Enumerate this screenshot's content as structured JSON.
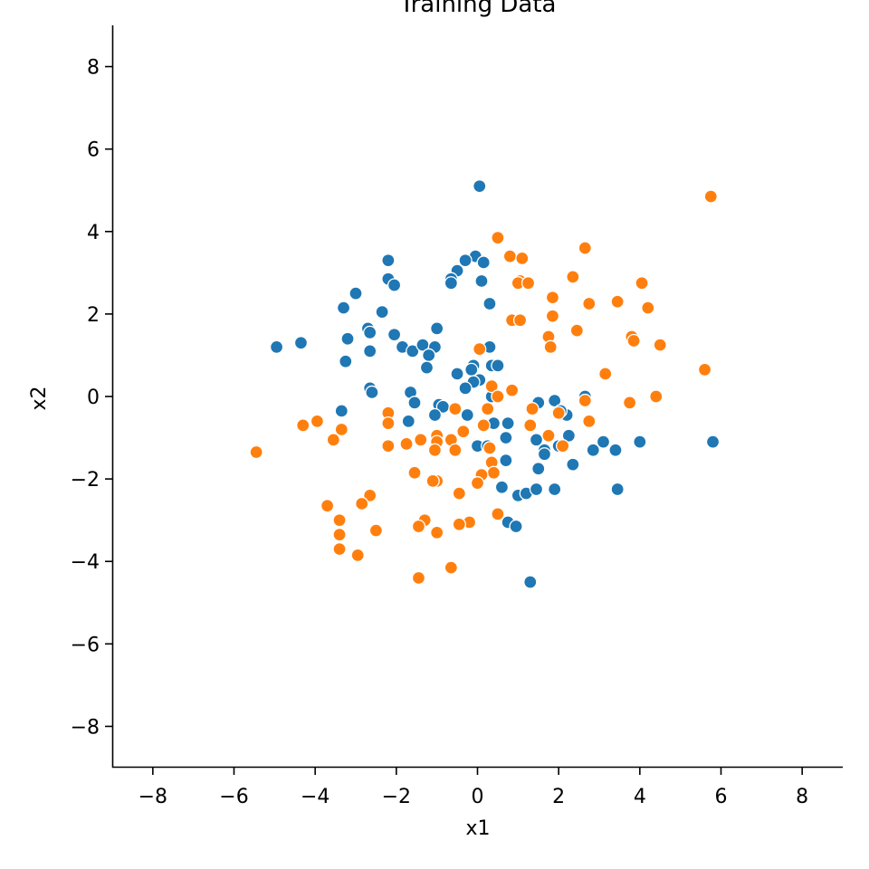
{
  "chart_data": {
    "type": "scatter",
    "title": "Training Data",
    "xlabel": "x1",
    "ylabel": "x2",
    "xlim": [
      -9,
      9
    ],
    "ylim": [
      -9,
      9
    ],
    "xticks": [
      -8,
      -6,
      -4,
      -2,
      0,
      2,
      4,
      6,
      8
    ],
    "yticks": [
      -8,
      -6,
      -4,
      -2,
      0,
      2,
      4,
      6,
      8
    ],
    "tick_labels": [
      "−8",
      "−6",
      "−4",
      "−2",
      "0",
      "2",
      "4",
      "6",
      "8"
    ],
    "grid": false,
    "series": [
      {
        "color": "#1f77b4",
        "points": [
          [
            0.05,
            5.1
          ],
          [
            -0.05,
            3.4
          ],
          [
            0.15,
            3.25
          ],
          [
            -0.3,
            3.3
          ],
          [
            -0.5,
            3.05
          ],
          [
            -0.65,
            2.85
          ],
          [
            -0.65,
            2.75
          ],
          [
            0.1,
            2.8
          ],
          [
            -2.2,
            3.3
          ],
          [
            -2.2,
            2.85
          ],
          [
            -2.05,
            2.7
          ],
          [
            -3.0,
            2.5
          ],
          [
            -3.3,
            2.15
          ],
          [
            -2.35,
            2.05
          ],
          [
            0.3,
            2.25
          ],
          [
            -2.7,
            1.65
          ],
          [
            -2.65,
            1.55
          ],
          [
            -3.2,
            1.4
          ],
          [
            -2.05,
            1.5
          ],
          [
            -1.0,
            1.65
          ],
          [
            -4.35,
            1.3
          ],
          [
            -4.95,
            1.2
          ],
          [
            -2.65,
            1.1
          ],
          [
            -1.85,
            1.2
          ],
          [
            -1.6,
            1.1
          ],
          [
            -1.35,
            1.25
          ],
          [
            -1.05,
            1.2
          ],
          [
            -1.2,
            1.0
          ],
          [
            -3.25,
            0.85
          ],
          [
            -1.25,
            0.7
          ],
          [
            -0.5,
            0.55
          ],
          [
            0.3,
            1.2
          ],
          [
            0.35,
            0.75
          ],
          [
            0.5,
            0.75
          ],
          [
            -0.1,
            0.75
          ],
          [
            -0.15,
            0.65
          ],
          [
            0.05,
            0.4
          ],
          [
            -0.1,
            0.35
          ],
          [
            -0.3,
            0.2
          ],
          [
            -2.65,
            0.2
          ],
          [
            -2.6,
            0.1
          ],
          [
            -1.65,
            0.1
          ],
          [
            -1.55,
            -0.15
          ],
          [
            -3.35,
            -0.35
          ],
          [
            -0.95,
            -0.2
          ],
          [
            -0.85,
            -0.25
          ],
          [
            -1.05,
            -0.45
          ],
          [
            -0.25,
            -0.45
          ],
          [
            -1.7,
            -0.6
          ],
          [
            0.4,
            -0.65
          ],
          [
            0.75,
            -0.65
          ],
          [
            0.35,
            0.0
          ],
          [
            1.5,
            -0.15
          ],
          [
            1.9,
            -0.1
          ],
          [
            2.2,
            -0.45
          ],
          [
            2.65,
            0.0
          ],
          [
            2.05,
            -0.35
          ],
          [
            1.45,
            -1.05
          ],
          [
            1.65,
            -1.3
          ],
          [
            1.65,
            -1.4
          ],
          [
            2.25,
            -0.95
          ],
          [
            2.0,
            -1.2
          ],
          [
            2.85,
            -1.3
          ],
          [
            3.1,
            -1.1
          ],
          [
            3.4,
            -1.3
          ],
          [
            4.0,
            -1.1
          ],
          [
            5.8,
            -1.1
          ],
          [
            0.7,
            -1.0
          ],
          [
            0.0,
            -1.2
          ],
          [
            0.25,
            -1.2
          ],
          [
            0.7,
            -1.55
          ],
          [
            1.5,
            -1.75
          ],
          [
            2.35,
            -1.65
          ],
          [
            0.6,
            -2.2
          ],
          [
            1.0,
            -2.4
          ],
          [
            1.2,
            -2.35
          ],
          [
            1.45,
            -2.25
          ],
          [
            1.9,
            -2.25
          ],
          [
            3.45,
            -2.25
          ],
          [
            0.75,
            -3.05
          ],
          [
            0.95,
            -3.15
          ],
          [
            1.3,
            -4.5
          ]
        ]
      },
      {
        "color": "#ff7f0e",
        "points": [
          [
            5.75,
            4.85
          ],
          [
            0.5,
            3.85
          ],
          [
            0.8,
            3.4
          ],
          [
            1.1,
            3.35
          ],
          [
            2.65,
            3.6
          ],
          [
            1.05,
            2.8
          ],
          [
            1.0,
            2.75
          ],
          [
            1.25,
            2.75
          ],
          [
            2.35,
            2.9
          ],
          [
            4.05,
            2.75
          ],
          [
            1.85,
            2.4
          ],
          [
            2.75,
            2.25
          ],
          [
            3.45,
            2.3
          ],
          [
            4.2,
            2.15
          ],
          [
            0.85,
            1.85
          ],
          [
            1.05,
            1.85
          ],
          [
            1.85,
            1.95
          ],
          [
            2.45,
            1.6
          ],
          [
            1.75,
            1.45
          ],
          [
            1.8,
            1.2
          ],
          [
            3.8,
            1.45
          ],
          [
            3.85,
            1.35
          ],
          [
            4.5,
            1.25
          ],
          [
            0.05,
            1.15
          ],
          [
            3.15,
            0.55
          ],
          [
            5.6,
            0.65
          ],
          [
            0.35,
            0.25
          ],
          [
            0.85,
            0.15
          ],
          [
            0.5,
            0.0
          ],
          [
            4.4,
            0.0
          ],
          [
            3.75,
            -0.15
          ],
          [
            2.65,
            -0.1
          ],
          [
            1.35,
            -0.3
          ],
          [
            2.0,
            -0.4
          ],
          [
            2.75,
            -0.6
          ],
          [
            1.3,
            -0.7
          ],
          [
            1.75,
            -0.95
          ],
          [
            2.1,
            -1.2
          ],
          [
            0.25,
            -0.3
          ],
          [
            0.15,
            -0.7
          ],
          [
            -0.55,
            -0.3
          ],
          [
            -0.35,
            -0.85
          ],
          [
            -0.65,
            -1.05
          ],
          [
            -1.0,
            -0.95
          ],
          [
            -1.0,
            -1.1
          ],
          [
            -1.4,
            -1.05
          ],
          [
            -0.55,
            -1.3
          ],
          [
            -1.05,
            -1.3
          ],
          [
            -1.75,
            -1.15
          ],
          [
            -2.2,
            -0.4
          ],
          [
            -2.2,
            -0.65
          ],
          [
            -3.35,
            -0.8
          ],
          [
            -3.55,
            -1.05
          ],
          [
            -3.95,
            -0.6
          ],
          [
            -4.3,
            -0.7
          ],
          [
            -2.2,
            -1.2
          ],
          [
            -5.45,
            -1.35
          ],
          [
            0.3,
            -1.25
          ],
          [
            0.35,
            -1.6
          ],
          [
            0.4,
            -1.85
          ],
          [
            0.1,
            -1.9
          ],
          [
            0.0,
            -2.1
          ],
          [
            -1.55,
            -1.85
          ],
          [
            -1.0,
            -2.05
          ],
          [
            -1.1,
            -2.05
          ],
          [
            -2.65,
            -2.4
          ],
          [
            -2.85,
            -2.6
          ],
          [
            -3.7,
            -2.65
          ],
          [
            -0.45,
            -2.35
          ],
          [
            0.5,
            -2.85
          ],
          [
            -0.2,
            -3.05
          ],
          [
            -0.45,
            -3.1
          ],
          [
            -1.3,
            -3.0
          ],
          [
            -1.45,
            -3.15
          ],
          [
            -1.0,
            -3.3
          ],
          [
            -2.5,
            -3.25
          ],
          [
            -3.4,
            -3.0
          ],
          [
            -3.4,
            -3.35
          ],
          [
            -3.4,
            -3.7
          ],
          [
            -2.95,
            -3.85
          ],
          [
            -0.65,
            -4.15
          ],
          [
            -1.45,
            -4.4
          ]
        ]
      }
    ]
  }
}
